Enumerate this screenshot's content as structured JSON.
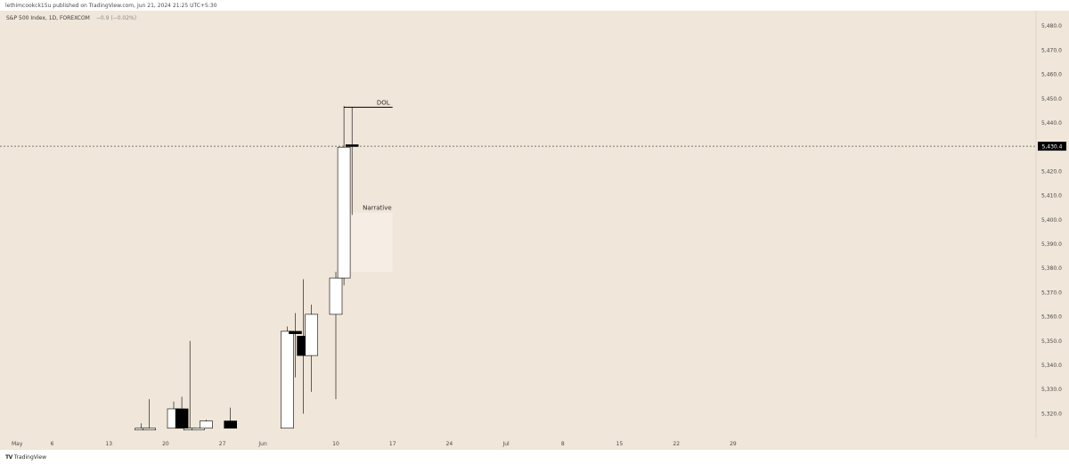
{
  "header": {
    "published": "lethimcookck15u published on TradingView.com, Jun 21, 2024 21:25 UTC+5:30"
  },
  "footer": {
    "logo_mark": "TV",
    "logo_text": "TradingView"
  },
  "colors": {
    "background": "#f0e6d9",
    "up_candle_fill": "#ffffff",
    "down_candle_fill": "#000000",
    "candle_outline": "#000000",
    "narrative_box": "#f6eee4"
  },
  "chart_data": {
    "type": "candlestick",
    "title": "S&P 500 Index, 1D, FOREXCOM",
    "change": "−0.9 (−0.02%)",
    "ylim": [
      5313,
      5485
    ],
    "yticks": [
      5480,
      5470,
      5460,
      5450,
      5440,
      5420,
      5410,
      5400,
      5390,
      5380,
      5370,
      5360,
      5350,
      5340,
      5330,
      5320
    ],
    "ytick_labels": [
      "5,480.0",
      "5,470.0",
      "5,460.0",
      "5,450.0",
      "5,440.0",
      "5,420.0",
      "5,410.0",
      "5,400.0",
      "5,390.0",
      "5,380.0",
      "5,370.0",
      "5,360.0",
      "5,350.0",
      "5,340.0",
      "5,330.0",
      "5,320.0"
    ],
    "xtick_labels": [
      "May",
      "6",
      "13",
      "20",
      "27",
      "Jun",
      "10",
      "17",
      "24",
      "Jul",
      "8",
      "15",
      "22",
      "29"
    ],
    "xtick_days": [
      0,
      5,
      12,
      19,
      26,
      31,
      40,
      47,
      54,
      61,
      68,
      75,
      82,
      89
    ],
    "last_price": 5430.4,
    "last_price_label": "5,430.4",
    "candles": [
      {
        "day": 16,
        "open": 5314.0,
        "high": 5316.0,
        "low": 5314.0,
        "close": 5314.0
      },
      {
        "day": 17,
        "open": 5314.0,
        "high": 5326.0,
        "low": 5314.0,
        "close": 5314.0
      },
      {
        "day": 20,
        "open": 5314.0,
        "high": 5325.0,
        "low": 5314.0,
        "close": 5322.0
      },
      {
        "day": 21,
        "open": 5322.0,
        "high": 5327.0,
        "low": 5314.0,
        "close": 5314.0
      },
      {
        "day": 22,
        "open": 5314.0,
        "high": 5350.0,
        "low": 5314.0,
        "close": 5314.0
      },
      {
        "day": 23,
        "open": 5314.0,
        "high": 5314.0,
        "low": 5314.0,
        "close": 5314.0
      },
      {
        "day": 24,
        "open": 5314.0,
        "high": 5317.5,
        "low": 5314.0,
        "close": 5317.0
      },
      {
        "day": 27,
        "open": 5317.0,
        "high": 5322.5,
        "low": 5314.0,
        "close": 5314.0
      },
      {
        "day": 34,
        "open": 5314.0,
        "high": 5356.0,
        "low": 5314.0,
        "close": 5354.0
      },
      {
        "day": 35,
        "open": 5354.0,
        "high": 5361.5,
        "low": 5335.0,
        "close": 5353.0
      },
      {
        "day": 36,
        "open": 5352.0,
        "high": 5375.5,
        "low": 5320.0,
        "close": 5344.0
      },
      {
        "day": 37,
        "open": 5344.0,
        "high": 5365.0,
        "low": 5329.0,
        "close": 5361.0
      },
      {
        "day": 40,
        "open": 5361.0,
        "high": 5378.5,
        "low": 5326.0,
        "close": 5376.0
      },
      {
        "day": 41,
        "open": 5376.0,
        "high": 5447.0,
        "low": 5373.0,
        "close": 5430.0
      },
      {
        "day": 42,
        "open": 5431.0,
        "high": 5446.5,
        "low": 5402.0,
        "close": 5430.4
      }
    ],
    "annotations": [
      {
        "type": "hline",
        "label": "DOL",
        "price": 5446.5,
        "from_day": 41,
        "to_day": 47
      },
      {
        "type": "box",
        "label": "Narrative",
        "price_top": 5403.0,
        "price_bottom": 5378.5,
        "from_day": 41,
        "to_day": 47
      }
    ]
  }
}
